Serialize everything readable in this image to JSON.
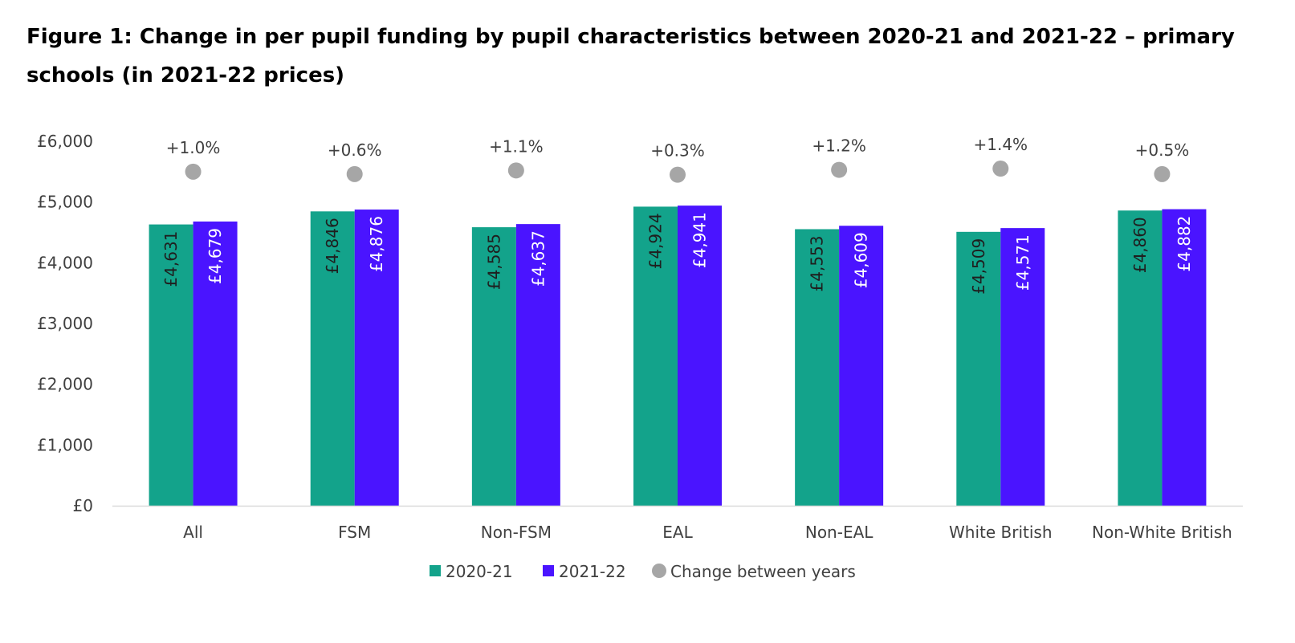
{
  "title": "Figure 1: Change in per pupil funding by pupil characteristics between 2020-21 and 2021-22 – primary schools (in 2021-22 prices)",
  "chart_data": {
    "type": "bar",
    "title": "Figure 1: Change in per pupil funding by pupil characteristics between 2020-21 and 2021-22 – primary schools (in 2021-22 prices)",
    "xlabel": "",
    "ylabel": "",
    "ylim": [
      0,
      6000
    ],
    "yticks": [
      0,
      1000,
      2000,
      3000,
      4000,
      5000,
      6000
    ],
    "ytick_labels": [
      "£0",
      "£1,000",
      "£2,000",
      "£3,000",
      "£4,000",
      "£5,000",
      "£6,000"
    ],
    "categories": [
      "All",
      "FSM",
      "Non-FSM",
      "EAL",
      "Non-EAL",
      "White British",
      "Non-White British"
    ],
    "series": [
      {
        "name": "2020-21",
        "color": "#13a38b",
        "label_color": "#1f1f1f",
        "values": [
          4631,
          4846,
          4585,
          4924,
          4553,
          4509,
          4860
        ],
        "labels": [
          "£4,631",
          "£4,846",
          "£4,585",
          "£4,924",
          "£4,553",
          "£4,509",
          "£4,860"
        ]
      },
      {
        "name": "2021-22",
        "color": "#4a14ff",
        "label_color": "#ffffff",
        "values": [
          4679,
          4876,
          4637,
          4941,
          4609,
          4571,
          4882
        ],
        "labels": [
          "£4,679",
          "£4,876",
          "£4,637",
          "£4,941",
          "£4,609",
          "£4,571",
          "£4,882"
        ]
      }
    ],
    "change": {
      "name": "Change between years",
      "color": "#a6a6a6",
      "values": [
        5500,
        5460,
        5520,
        5450,
        5530,
        5550,
        5460
      ],
      "labels": [
        "+1.0%",
        "+0.6%",
        "+1.1%",
        "+0.3%",
        "+1.2%",
        "+1.4%",
        "+0.5%"
      ]
    },
    "grid": false,
    "legend_position": "bottom"
  }
}
